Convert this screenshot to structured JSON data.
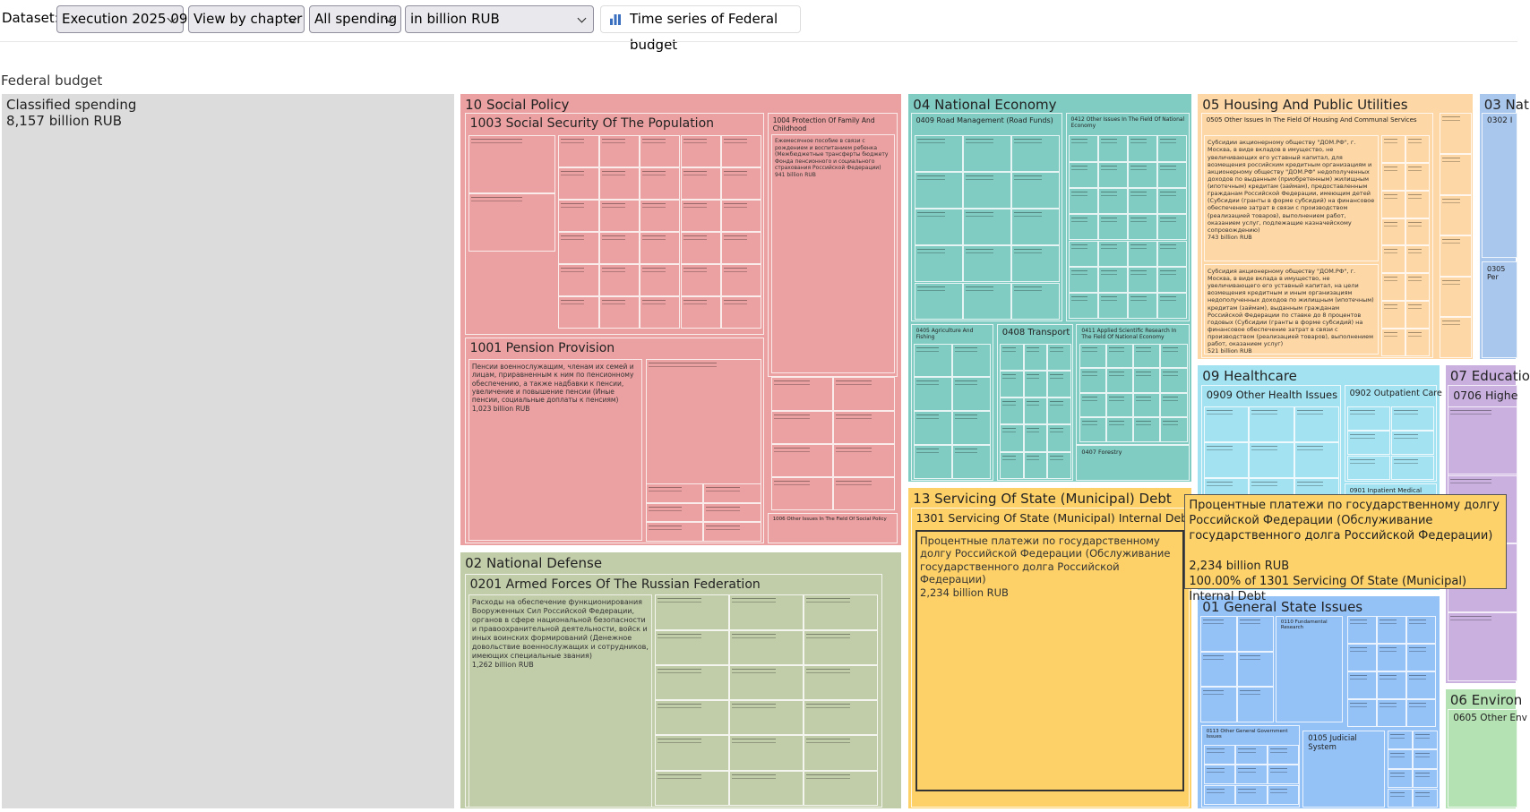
{
  "toolbar": {
    "dataset_label": "Dataset:",
    "dataset": "Execution 2025 09",
    "view": "View by chapter",
    "spending": "All spending",
    "units": "in billion RUB",
    "button": "Time series of Federal budget"
  },
  "treemap": {
    "title": "Federal budget",
    "nodes": [
      {
        "label": "Classified spending",
        "value": "8,157 billion RUB"
      },
      {
        "label": "10 Social Policy",
        "children": [
          {
            "label": "1003 Social Security Of The Population"
          },
          {
            "label": "1004 Protection Of Family And Childhood",
            "children": [
              {
                "text": "Ежемесячное пособие в связи с рождением и воспитанием ребенка (Межбюджетные трансферты бюджету Фонда пенсионного и социального страхования Российской Федерации)",
                "value": "941 billion RUB"
              }
            ]
          },
          {
            "label": "1001 Pension Provision",
            "children": [
              {
                "text": "Пенсии военнослужащим, членам их семей и лицам, приравненным к ним по пенсионному обеспечению, а также надбавки к пенсии, увеличение и повышение пенсии (Иные пенсии, социальные доплаты к пенсиям)",
                "value": "1,023 billion RUB"
              }
            ]
          },
          {
            "label": "1006 Other Issues In The Field Of Social Policy"
          }
        ]
      },
      {
        "label": "04 National Economy",
        "children": [
          {
            "label": "0409 Road Management (Road Funds)"
          },
          {
            "label": "0412 Other Issues In The Field Of National Economy"
          },
          {
            "label": "0405 Agriculture And Fishing"
          },
          {
            "label": "0408 Transport"
          },
          {
            "label": "0411 Applied Scientific Research In The Field Of National Economy"
          },
          {
            "label": "0407 Forestry"
          }
        ]
      },
      {
        "label": "05 Housing And Public Utilities",
        "children": [
          {
            "label": "0505 Other Issues In The Field Of Housing And Communal Services",
            "children": [
              {
                "text": "Субсидии акционерному обществу \"ДОМ.РФ\", г. Москва, в виде вкладов в имущество, не увеличивающих его уставный капитал, для возмещения российским кредитным организациям и акционерному обществу \"ДОМ.РФ\" недополученных доходов по выданным (приобретенным) жилищным (ипотечным) кредитам (займам), предоставленным гражданам Российской Федерации, имеющим детей (Субсидии (гранты в форме субсидий) на финансовое обеспечение затрат в связи с производством (реализацией товаров), выполнением работ, оказанием услуг, подлежащие казначейскому сопровождению)",
                "value": "743 billion RUB"
              },
              {
                "text": "Субсидия акционерному обществу \"ДОМ.РФ\", г. Москва, в виде вклада в имущество, не увеличивающего его уставный капитал, на цели возмещения кредитным и иным организациям недополученных доходов по жилищным (ипотечным) кредитам (займам), выданным гражданам Российской Федерации по ставке до 8 процентов годовых (Субсидии (гранты в форме субсидий) на финансовое обеспечение затрат в связи с производством (реализацией товаров), выполнением работ, оказанием услуг)",
                "value": "521 billion RUB"
              }
            ]
          }
        ]
      },
      {
        "label": "03 Nat",
        "children": [
          {
            "label": "0302 I"
          },
          {
            "label": "0305 Per"
          }
        ]
      },
      {
        "label": "09 Healthcare",
        "children": [
          {
            "label": "0909 Other Health Issues"
          },
          {
            "label": "0902 Outpatient Care"
          },
          {
            "label": "0901 Inpatient Medical Care"
          }
        ]
      },
      {
        "label": "07 Educatio",
        "children": [
          {
            "label": "0706 Highe"
          }
        ]
      },
      {
        "label": "13 Servicing Of State (Municipal) Debt",
        "children": [
          {
            "label": "1301 Servicing Of State (Municipal) Internal Debt",
            "children": [
              {
                "text": "Процентные платежи по государственному долгу Российской Федерации (Обслуживание государственного долга Российской Федерации)",
                "value": "2,234 billion RUB"
              }
            ]
          }
        ]
      },
      {
        "label": "02 National Defense",
        "children": [
          {
            "label": "0201 Armed Forces Of The Russian Federation",
            "children": [
              {
                "text": "Расходы на обеспечение функционирования Вооруженных Сил Российской Федерации, органов в сфере национальной безопасности и правоохранительной деятельности, войск и иных воинских формирований (Денежное довольствие военнослужащих и сотрудников, имеющих специальные звания)",
                "value": "1,262 billion RUB"
              }
            ]
          }
        ]
      },
      {
        "label": "01 General State Issues",
        "children": [
          {
            "label": "0113 Other General Government Issues"
          },
          {
            "label": "0110 Fundamental Research"
          },
          {
            "label": "0105 Judicial System"
          }
        ]
      },
      {
        "label": "06 Environ",
        "children": [
          {
            "label": "0605 Other Env"
          }
        ]
      }
    ]
  },
  "tooltip": {
    "text": "Процентные платежи по государственному долгу Российской Федерации (Обслуживание государственного долга Российской Федерации)",
    "value": "2,234 billion RUB",
    "share": "100.00% of 1301 Servicing Of State (Municipal) Internal Debt"
  }
}
